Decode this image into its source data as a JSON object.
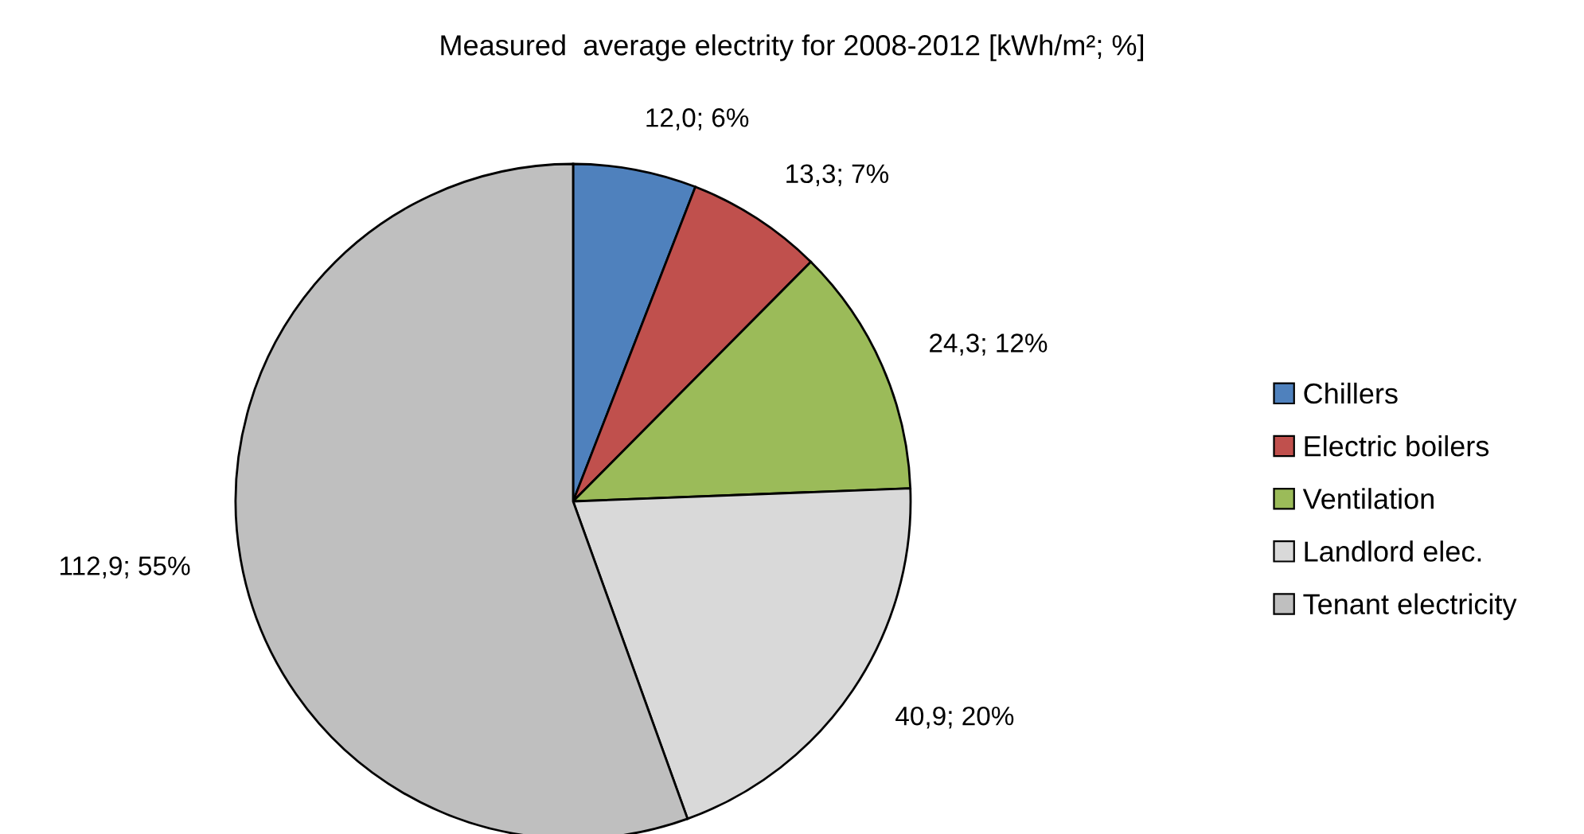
{
  "chart_data": {
    "type": "pie",
    "title": "Measured  average electrity for 2008-2012 [kWh/m²; %]",
    "categories": [
      "Chillers",
      "Electric boilers",
      "Ventilation",
      "Landlord elec.",
      "Tenant electricity"
    ],
    "values": [
      12.0,
      13.3,
      24.3,
      40.9,
      112.9
    ],
    "colors": [
      "#4f81bd",
      "#c0504d",
      "#9bbb59",
      "#d9d9d9",
      "#bfbfbf"
    ],
    "value_labels": [
      "12,0; 6%",
      "13,3; 7%",
      "24,3; 12%",
      "40,9; 20%",
      "112,9; 55%"
    ],
    "legend": "right"
  }
}
